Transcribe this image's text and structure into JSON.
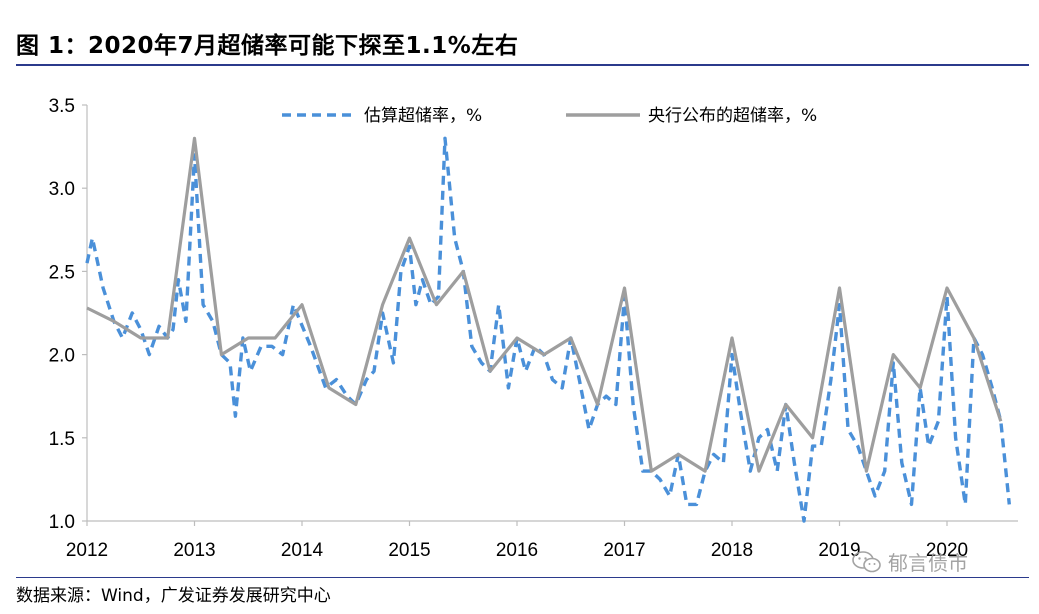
{
  "title": "图  1：2020年7月超储率可能下探至1.1%左右",
  "source": "数据来源：Wind，广发证券发展研究中心",
  "watermark": "郁言债市",
  "chart_data": {
    "type": "line",
    "x_ticks": [
      "2012",
      "2013",
      "2014",
      "2015",
      "2016",
      "2017",
      "2018",
      "2019",
      "2020"
    ],
    "y_ticks": [
      "1.0",
      "1.5",
      "2.0",
      "2.5",
      "3.0",
      "3.5"
    ],
    "ylim": [
      1.0,
      3.5
    ],
    "xlim": [
      2012.0,
      2020.75
    ],
    "grid": false,
    "legend_position": "top",
    "series": [
      {
        "name": "估算超储率，%",
        "style": "dashed",
        "color": "#4a90d9",
        "points": [
          [
            2012.0,
            2.55
          ],
          [
            2012.05,
            2.7
          ],
          [
            2012.15,
            2.4
          ],
          [
            2012.25,
            2.2
          ],
          [
            2012.33,
            2.1
          ],
          [
            2012.42,
            2.25
          ],
          [
            2012.5,
            2.15
          ],
          [
            2012.58,
            2.0
          ],
          [
            2012.67,
            2.17
          ],
          [
            2012.75,
            2.1
          ],
          [
            2012.8,
            2.15
          ],
          [
            2012.85,
            2.45
          ],
          [
            2012.92,
            2.2
          ],
          [
            2013.0,
            3.2
          ],
          [
            2013.08,
            2.3
          ],
          [
            2013.17,
            2.2
          ],
          [
            2013.25,
            2.0
          ],
          [
            2013.33,
            1.95
          ],
          [
            2013.38,
            1.63
          ],
          [
            2013.45,
            2.1
          ],
          [
            2013.52,
            1.9
          ],
          [
            2013.62,
            2.05
          ],
          [
            2013.72,
            2.05
          ],
          [
            2013.82,
            2.0
          ],
          [
            2013.92,
            2.3
          ],
          [
            2014.08,
            2.05
          ],
          [
            2014.22,
            1.8
          ],
          [
            2014.32,
            1.85
          ],
          [
            2014.42,
            1.75
          ],
          [
            2014.5,
            1.7
          ],
          [
            2014.6,
            1.85
          ],
          [
            2014.67,
            1.9
          ],
          [
            2014.75,
            2.25
          ],
          [
            2014.85,
            1.95
          ],
          [
            2014.92,
            2.5
          ],
          [
            2015.0,
            2.65
          ],
          [
            2015.06,
            2.3
          ],
          [
            2015.12,
            2.45
          ],
          [
            2015.2,
            2.3
          ],
          [
            2015.27,
            2.35
          ],
          [
            2015.33,
            3.3
          ],
          [
            2015.42,
            2.7
          ],
          [
            2015.5,
            2.5
          ],
          [
            2015.58,
            2.05
          ],
          [
            2015.67,
            1.95
          ],
          [
            2015.75,
            1.9
          ],
          [
            2015.83,
            2.3
          ],
          [
            2015.92,
            1.8
          ],
          [
            2016.0,
            2.1
          ],
          [
            2016.08,
            1.9
          ],
          [
            2016.17,
            2.05
          ],
          [
            2016.25,
            2.0
          ],
          [
            2016.33,
            1.85
          ],
          [
            2016.42,
            1.8
          ],
          [
            2016.5,
            2.1
          ],
          [
            2016.58,
            1.85
          ],
          [
            2016.67,
            1.55
          ],
          [
            2016.75,
            1.7
          ],
          [
            2016.83,
            1.75
          ],
          [
            2016.92,
            1.7
          ],
          [
            2017.0,
            2.35
          ],
          [
            2017.08,
            1.7
          ],
          [
            2017.17,
            1.3
          ],
          [
            2017.25,
            1.3
          ],
          [
            2017.33,
            1.25
          ],
          [
            2017.42,
            1.15
          ],
          [
            2017.5,
            1.4
          ],
          [
            2017.58,
            1.1
          ],
          [
            2017.67,
            1.1
          ],
          [
            2017.75,
            1.3
          ],
          [
            2017.83,
            1.4
          ],
          [
            2017.92,
            1.35
          ],
          [
            2018.0,
            2.0
          ],
          [
            2018.08,
            1.65
          ],
          [
            2018.17,
            1.3
          ],
          [
            2018.25,
            1.5
          ],
          [
            2018.33,
            1.55
          ],
          [
            2018.42,
            1.3
          ],
          [
            2018.5,
            1.7
          ],
          [
            2018.58,
            1.35
          ],
          [
            2018.67,
            1.0
          ],
          [
            2018.75,
            1.45
          ],
          [
            2018.83,
            1.45
          ],
          [
            2018.92,
            1.85
          ],
          [
            2019.0,
            2.3
          ],
          [
            2019.08,
            1.55
          ],
          [
            2019.17,
            1.45
          ],
          [
            2019.25,
            1.3
          ],
          [
            2019.33,
            1.15
          ],
          [
            2019.42,
            1.3
          ],
          [
            2019.5,
            1.95
          ],
          [
            2019.58,
            1.35
          ],
          [
            2019.67,
            1.1
          ],
          [
            2019.75,
            1.8
          ],
          [
            2019.83,
            1.45
          ],
          [
            2019.92,
            1.6
          ],
          [
            2020.0,
            2.35
          ],
          [
            2020.08,
            1.5
          ],
          [
            2020.17,
            1.1
          ],
          [
            2020.25,
            2.1
          ],
          [
            2020.33,
            2.0
          ],
          [
            2020.42,
            1.8
          ],
          [
            2020.5,
            1.6
          ],
          [
            2020.58,
            1.1
          ]
        ]
      },
      {
        "name": "央行公布的超储率，%",
        "style": "solid",
        "color": "#9e9e9e",
        "points": [
          [
            2012.0,
            2.28
          ],
          [
            2012.25,
            2.2
          ],
          [
            2012.5,
            2.1
          ],
          [
            2012.75,
            2.1
          ],
          [
            2013.0,
            3.3
          ],
          [
            2013.25,
            2.0
          ],
          [
            2013.5,
            2.1
          ],
          [
            2013.75,
            2.1
          ],
          [
            2014.0,
            2.3
          ],
          [
            2014.25,
            1.8
          ],
          [
            2014.5,
            1.7
          ],
          [
            2014.75,
            2.3
          ],
          [
            2015.0,
            2.7
          ],
          [
            2015.25,
            2.3
          ],
          [
            2015.5,
            2.5
          ],
          [
            2015.75,
            1.9
          ],
          [
            2016.0,
            2.1
          ],
          [
            2016.25,
            2.0
          ],
          [
            2016.5,
            2.1
          ],
          [
            2016.75,
            1.7
          ],
          [
            2017.0,
            2.4
          ],
          [
            2017.25,
            1.3
          ],
          [
            2017.5,
            1.4
          ],
          [
            2017.75,
            1.3
          ],
          [
            2018.0,
            2.1
          ],
          [
            2018.25,
            1.3
          ],
          [
            2018.5,
            1.7
          ],
          [
            2018.75,
            1.5
          ],
          [
            2019.0,
            2.4
          ],
          [
            2019.25,
            1.3
          ],
          [
            2019.5,
            2.0
          ],
          [
            2019.75,
            1.8
          ],
          [
            2020.0,
            2.4
          ],
          [
            2020.25,
            2.1
          ],
          [
            2020.5,
            1.6
          ]
        ]
      }
    ]
  }
}
